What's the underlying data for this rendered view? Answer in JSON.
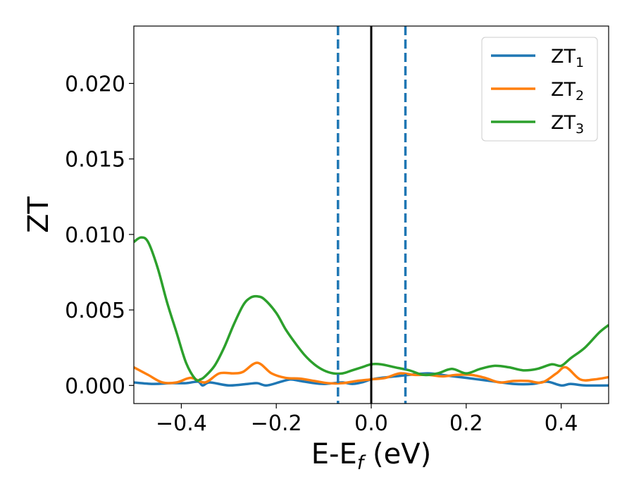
{
  "chart_data": {
    "type": "line",
    "xlabel": "E-E",
    "xlabel_sub": "f",
    "xlabel_unit": " (eV)",
    "ylabel": "ZT",
    "xlim": [
      -0.5,
      0.5
    ],
    "ylim": [
      -0.0012,
      0.0238
    ],
    "xticks": [
      -0.4,
      -0.2,
      0.0,
      0.2,
      0.4
    ],
    "xtick_labels": [
      "−0.4",
      "−0.2",
      "0.0",
      "0.2",
      "0.4"
    ],
    "yticks": [
      0.0,
      0.005,
      0.01,
      0.015,
      0.02
    ],
    "ytick_labels": [
      "0.000",
      "0.005",
      "0.010",
      "0.015",
      "0.020"
    ],
    "grid": false,
    "legend_position": "top-right",
    "vertical_lines": [
      {
        "x": -0.07,
        "style": "dashed",
        "color": "#1f77b4"
      },
      {
        "x": 0.072,
        "style": "dashed",
        "color": "#1f77b4"
      },
      {
        "x": 0.0,
        "style": "solid",
        "color": "#000000"
      }
    ],
    "series": [
      {
        "name": "ZT",
        "sub": "1",
        "color": "#1f77b4",
        "x": [
          -0.5,
          -0.46,
          -0.42,
          -0.39,
          -0.365,
          -0.355,
          -0.34,
          -0.3,
          -0.26,
          -0.24,
          -0.22,
          -0.19,
          -0.17,
          -0.15,
          -0.12,
          -0.1,
          -0.08,
          -0.06,
          -0.04,
          -0.02,
          0.0,
          0.02,
          0.05,
          0.08,
          0.12,
          0.16,
          0.2,
          0.25,
          0.3,
          0.34,
          0.37,
          0.4,
          0.42,
          0.45,
          0.5
        ],
        "y": [
          0.0002,
          0.0001,
          0.00015,
          0.00015,
          0.00025,
          0.0,
          0.0002,
          0.0,
          0.0001,
          0.00015,
          0.0,
          0.00025,
          0.0004,
          0.0003,
          0.00015,
          0.0001,
          0.00015,
          0.0002,
          0.0001,
          0.0002,
          0.0004,
          0.0005,
          0.0006,
          0.0007,
          0.0008,
          0.00065,
          0.0005,
          0.0003,
          0.0001,
          0.0001,
          0.00025,
          0.0,
          0.0001,
          0.0,
          0.0
        ]
      },
      {
        "name": "ZT",
        "sub": "2",
        "color": "#ff7f0e",
        "x": [
          -0.5,
          -0.47,
          -0.44,
          -0.41,
          -0.38,
          -0.35,
          -0.32,
          -0.29,
          -0.27,
          -0.24,
          -0.21,
          -0.18,
          -0.15,
          -0.12,
          -0.09,
          -0.06,
          -0.03,
          0.0,
          0.03,
          0.06,
          0.09,
          0.12,
          0.15,
          0.18,
          0.21,
          0.24,
          0.27,
          0.3,
          0.33,
          0.36,
          0.39,
          0.41,
          0.44,
          0.47,
          0.5
        ],
        "y": [
          0.0012,
          0.0007,
          0.0002,
          0.0002,
          0.0005,
          0.0002,
          0.0008,
          0.0008,
          0.0009,
          0.0015,
          0.0008,
          0.0005,
          0.00045,
          0.0003,
          0.00015,
          0.00015,
          0.0003,
          0.0004,
          0.0005,
          0.0008,
          0.0007,
          0.0007,
          0.0006,
          0.0007,
          0.0007,
          0.0005,
          0.0002,
          0.0003,
          0.0003,
          0.0002,
          0.0008,
          0.0012,
          0.0004,
          0.0004,
          0.00055
        ]
      },
      {
        "name": "ZT",
        "sub": "3",
        "color": "#2ca02c",
        "x": [
          -0.5,
          -0.485,
          -0.47,
          -0.45,
          -0.43,
          -0.41,
          -0.39,
          -0.37,
          -0.36,
          -0.35,
          -0.33,
          -0.31,
          -0.29,
          -0.27,
          -0.255,
          -0.24,
          -0.225,
          -0.2,
          -0.18,
          -0.16,
          -0.14,
          -0.12,
          -0.1,
          -0.08,
          -0.06,
          -0.04,
          -0.02,
          0.0,
          0.02,
          0.05,
          0.08,
          0.11,
          0.14,
          0.17,
          0.2,
          0.23,
          0.26,
          0.29,
          0.32,
          0.35,
          0.38,
          0.4,
          0.42,
          0.45,
          0.48,
          0.5
        ],
        "y": [
          0.0095,
          0.0098,
          0.0095,
          0.0078,
          0.0055,
          0.0035,
          0.0015,
          0.0004,
          0.0004,
          0.0006,
          0.0013,
          0.0025,
          0.004,
          0.0053,
          0.0058,
          0.0059,
          0.0057,
          0.0048,
          0.0037,
          0.0028,
          0.002,
          0.0014,
          0.001,
          0.0008,
          0.0008,
          0.001,
          0.0012,
          0.0014,
          0.0014,
          0.0012,
          0.001,
          0.0007,
          0.0008,
          0.0011,
          0.0008,
          0.0011,
          0.0013,
          0.0012,
          0.001,
          0.0011,
          0.0014,
          0.0013,
          0.0018,
          0.0025,
          0.0035,
          0.004
        ]
      }
    ]
  }
}
